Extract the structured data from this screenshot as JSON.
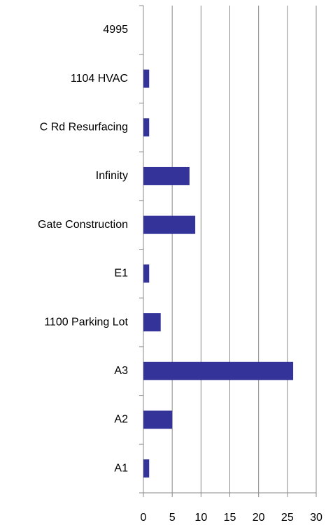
{
  "chart_data": {
    "type": "hbar",
    "categories": [
      "4995",
      "1104 HVAC",
      "C Rd Resurfacing",
      "Infinity",
      "Gate Construction",
      "E1",
      "1100 Parking Lot",
      "A3",
      "A2",
      "A1"
    ],
    "values": [
      0,
      1,
      1,
      8,
      9,
      1,
      3,
      26,
      5,
      1
    ],
    "color": "#333399",
    "xlim": [
      0,
      30
    ],
    "xticks": [
      0,
      5,
      10,
      15,
      20,
      25,
      30
    ],
    "grid": true
  }
}
